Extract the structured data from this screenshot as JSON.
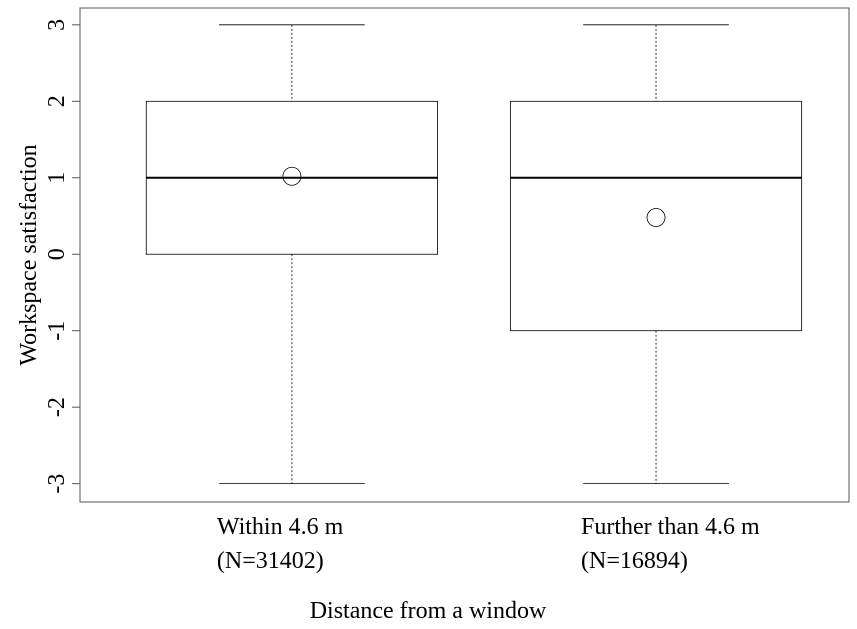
{
  "chart_data": {
    "type": "box",
    "xlabel": "Distance from a window",
    "ylabel": "Workspace satisfaction",
    "categories": [
      [
        "Within 4.6 m",
        "(N=31402)"
      ],
      [
        "Further than 4.6 m",
        "(N=16894)"
      ]
    ],
    "boxes": [
      {
        "min": -3,
        "q1": 0,
        "median": 1,
        "q3": 2,
        "max": 3,
        "mean": 1.02
      },
      {
        "min": -3,
        "q1": -1,
        "median": 1,
        "q3": 2,
        "max": 3,
        "mean": 0.48
      }
    ],
    "color": "#000000",
    "ylim": [
      -3.24,
      3.22
    ],
    "yticks": [
      -3,
      -2,
      -1,
      0,
      1,
      2,
      3
    ]
  }
}
